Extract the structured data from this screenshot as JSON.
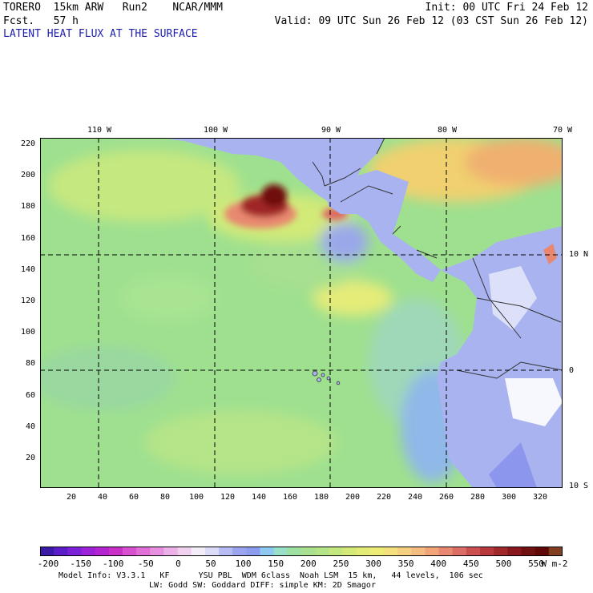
{
  "header": {
    "model_line": "TORERO  15km ARW   Run2    NCAR/MMM",
    "forecast_line": "Fcst.   57 h",
    "init_line": "Init: 00 UTC Fri 24 Feb 12",
    "valid_line": "Valid: 09 UTC Sun 26 Feb 12 (03 CST Sun 26 Feb 12)",
    "field_title": "LATENT HEAT FLUX AT THE SURFACE"
  },
  "map": {
    "y_grid_labels": [
      "220",
      "200",
      "180",
      "160",
      "140",
      "120",
      "100",
      "80",
      "60",
      "40",
      "20"
    ],
    "x_grid_labels": [
      "20",
      "40",
      "60",
      "80",
      "100",
      "120",
      "140",
      "160",
      "180",
      "200",
      "220",
      "240",
      "260",
      "280",
      "300",
      "320"
    ],
    "longitude_labels": [
      "110 W",
      "100 W",
      "90 W",
      "80 W",
      "70 W"
    ],
    "latitude_labels": [
      "10 N",
      "0",
      "10 S"
    ],
    "colors": {
      "ocean_base": "#9ee08f",
      "land_low": "#a8b3f0",
      "border": "#333333",
      "grid": "#000000"
    }
  },
  "colorbar": {
    "ticks": [
      "-200",
      "-150",
      "-100",
      "-50",
      "0",
      "50",
      "100",
      "150",
      "200",
      "250",
      "300",
      "350",
      "400",
      "450",
      "500",
      "550"
    ],
    "unit": "W m-2",
    "colors": [
      "#3b1aa8",
      "#5a1ec8",
      "#7a20d8",
      "#9b22d8",
      "#b224d0",
      "#c830c8",
      "#d850d0",
      "#e070d8",
      "#e890e0",
      "#eeb0e8",
      "#f2d0f0",
      "#f4eef8",
      "#dcdcf8",
      "#b8bcf4",
      "#9aa4f0",
      "#8c9cf0",
      "#8fc8f0",
      "#98e0c8",
      "#9ee0a0",
      "#a8e090",
      "#b4e488",
      "#c4e880",
      "#d4ea78",
      "#e4ec78",
      "#f0ec78",
      "#f4e07c",
      "#f4d080",
      "#f4bc80",
      "#f0a478",
      "#e88870",
      "#dc6c64",
      "#cc5050",
      "#b8383c",
      "#a02828",
      "#88181c",
      "#701010",
      "#600808",
      "#804020"
    ]
  },
  "footer": {
    "line1": "Model Info: V3.3.1   KF      YSU PBL  WDM 6class  Noah LSM  15 km,   44 levels,  106 sec",
    "line2": "LW: Godd SW: Goddard DIFF: simple KM: 2D Smagor"
  }
}
